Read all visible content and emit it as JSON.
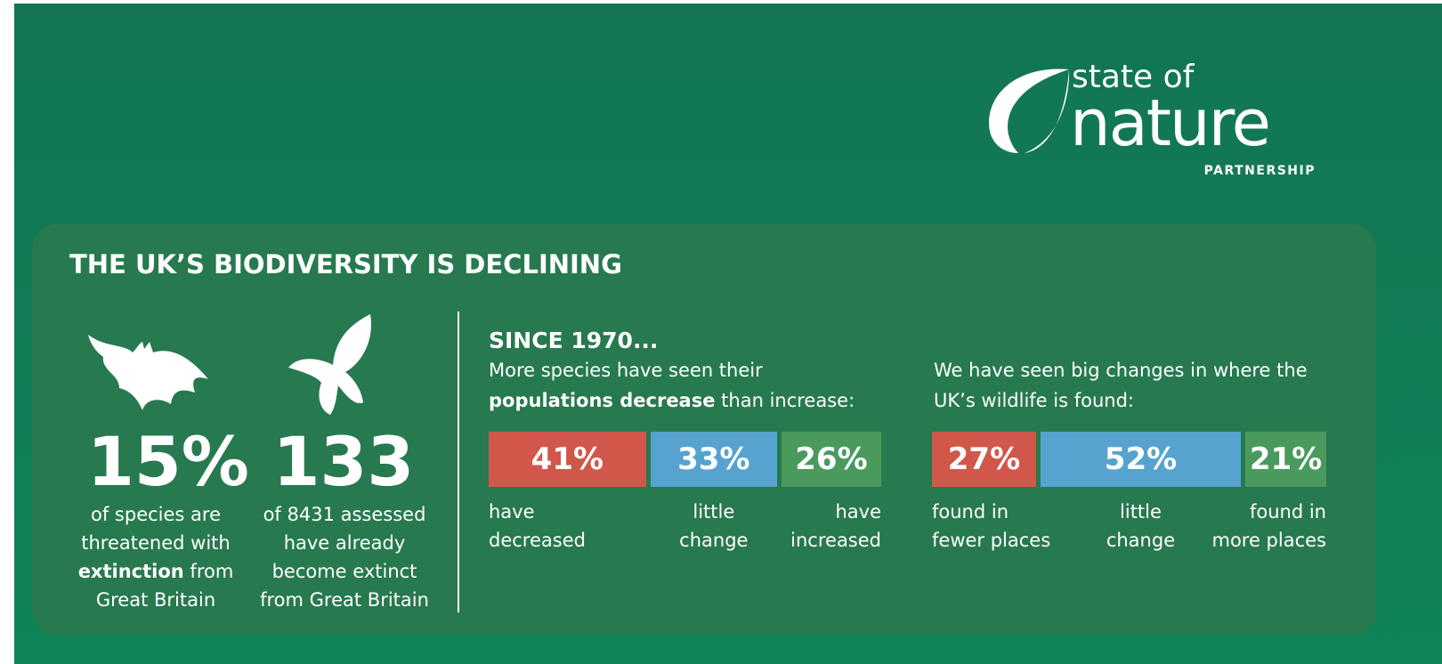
{
  "logo": {
    "line1": "state of",
    "line2": "nature",
    "line3": "PARTNERSHIP"
  },
  "title": "THE UK’S BIODIVERSITY IS DECLINING",
  "stats": [
    {
      "value": {
        "value": 15,
        "label": "15%"
      },
      "text_before": "of species are threatened with",
      "text_bold": "extinction",
      "text_after": "from Great Britain"
    },
    {
      "value": 133,
      "text_before": "of 8431 assessed have already become extinct from Great Britain"
    }
  ],
  "since": {
    "heading": "SINCE 1970...",
    "populations": {
      "line1": "More species have seen their",
      "line2_bold": "populations decrease",
      "line2_rest": "than increase:",
      "segments": [
        {
          "value": 41,
          "label": "41%",
          "color": "#d1574b",
          "caption": [
            "have",
            "decreased"
          ]
        },
        {
          "value": 33,
          "label": "33%",
          "color": "#56a3cf",
          "caption": [
            "little",
            "change"
          ]
        },
        {
          "value": 26,
          "label": "26%",
          "color": "#4a9a5e",
          "caption": [
            "have",
            "increased"
          ]
        }
      ]
    },
    "distribution": {
      "line1": "We have seen big changes in where the",
      "line2": "UK’s wildlife is found:",
      "segments": [
        {
          "value": 27,
          "label": "27%",
          "color": "#d1574b",
          "caption": [
            "found in",
            "fewer places"
          ]
        },
        {
          "value": 52,
          "label": "52%",
          "color": "#56a3cf",
          "caption": [
            "little",
            "change"
          ]
        },
        {
          "value": 21,
          "label": "21%",
          "color": "#4a9a5e",
          "caption": [
            "found in",
            "more places"
          ]
        }
      ]
    }
  }
}
